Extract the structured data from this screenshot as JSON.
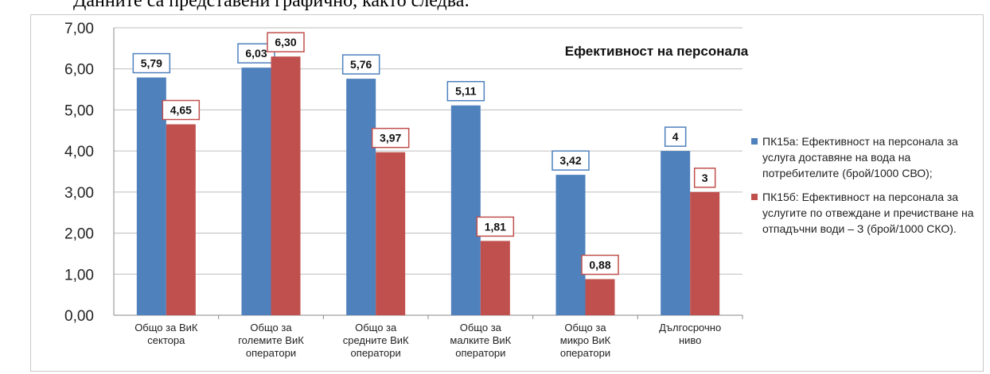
{
  "header": {
    "text": "Данните са представени графично, както следва:"
  },
  "chart_data": {
    "type": "bar",
    "title": "Ефективност на персонала",
    "categories": [
      [
        "Общо за ВиК",
        "сектора"
      ],
      [
        "Общо за",
        "големите ВиК",
        "оператори"
      ],
      [
        "Общо за",
        "средните ВиК",
        "оператори"
      ],
      [
        "Общо за",
        "малките ВиК",
        "оператори"
      ],
      [
        "Общо за",
        "микро ВиК",
        "оператори"
      ],
      [
        "Дългосрочно",
        "ниво"
      ]
    ],
    "series": [
      {
        "name": "ПК15а: Ефективност на персонала за услуга доставяне на вода на потребителите (брой/1000 СВО);",
        "values": [
          5.79,
          6.03,
          5.76,
          5.11,
          3.42,
          4
        ],
        "labels": [
          "5,79",
          "6,03",
          "5,76",
          "5,11",
          "3,42",
          "4"
        ],
        "color": "#4f81bd"
      },
      {
        "name": "ПК15б: Ефективност на персонала за услугите по отвеждане и пречистване на отпадъчни води – З (брой/1000 СКО).",
        "values": [
          4.65,
          6.3,
          3.97,
          1.81,
          0.88,
          3
        ],
        "labels": [
          "4,65",
          "6,30",
          "3,97",
          "1,81",
          "0,88",
          "3"
        ],
        "color": "#c0504d"
      }
    ],
    "yticks": [
      "0,00",
      "1,00",
      "2,00",
      "3,00",
      "4,00",
      "5,00",
      "6,00",
      "7,00"
    ],
    "ylim": [
      0,
      7
    ],
    "grid": true,
    "legend_position": "right"
  }
}
